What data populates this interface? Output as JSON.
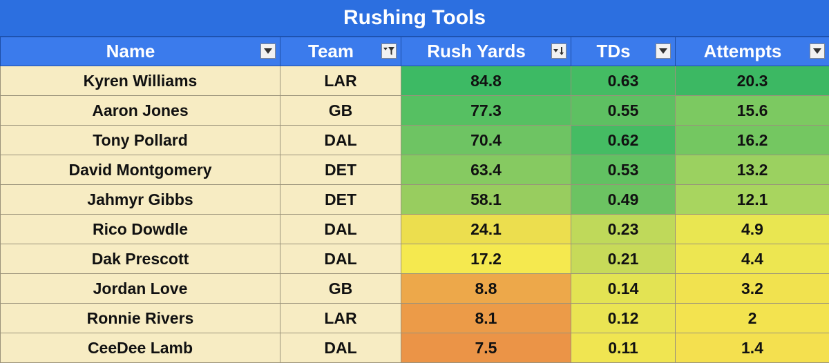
{
  "chart_data": {
    "type": "table",
    "title": "Rushing Tools",
    "columns": [
      {
        "label": "Name",
        "filter": "dropdown"
      },
      {
        "label": "Team",
        "filter": "filtered"
      },
      {
        "label": "Rush Yards",
        "filter": "sorted-desc"
      },
      {
        "label": "TDs",
        "filter": "dropdown"
      },
      {
        "label": "Attempts",
        "filter": "dropdown"
      }
    ],
    "rows": [
      {
        "name": "Kyren Williams",
        "team": "LAR",
        "rush_yards": "84.8",
        "tds": "0.63",
        "attempts": "20.3",
        "colors": [
          "#3dba64",
          "#44bc63",
          "#3cb863"
        ]
      },
      {
        "name": "Aaron Jones",
        "team": "GB",
        "rush_yards": "77.3",
        "tds": "0.55",
        "attempts": "15.6",
        "colors": [
          "#56c062",
          "#5ec062",
          "#7cc961"
        ]
      },
      {
        "name": "Tony Pollard",
        "team": "DAL",
        "rush_yards": "70.4",
        "tds": "0.62",
        "attempts": "16.2",
        "colors": [
          "#6ec463",
          "#45bc63",
          "#74c761"
        ]
      },
      {
        "name": "David Montgomery",
        "team": "DET",
        "rush_yards": "63.4",
        "tds": "0.53",
        "attempts": "13.2",
        "colors": [
          "#86ca61",
          "#62c162",
          "#9bd160"
        ]
      },
      {
        "name": "Jahmyr Gibbs",
        "team": "DET",
        "rush_yards": "58.1",
        "tds": "0.49",
        "attempts": "12.1",
        "colors": [
          "#98cd5f",
          "#6cc362",
          "#a8d55f"
        ]
      },
      {
        "name": "Rico Dowdle",
        "team": "DAL",
        "rush_yards": "24.1",
        "tds": "0.23",
        "attempts": "4.9",
        "colors": [
          "#ecde4e",
          "#bfd95a",
          "#e9e651"
        ]
      },
      {
        "name": "Dak Prescott",
        "team": "DAL",
        "rush_yards": "17.2",
        "tds": "0.21",
        "attempts": "4.4",
        "colors": [
          "#f5e94f",
          "#c7da59",
          "#ede651"
        ]
      },
      {
        "name": "Jordan Love",
        "team": "GB",
        "rush_yards": "8.8",
        "tds": "0.14",
        "attempts": "3.2",
        "colors": [
          "#eda84a",
          "#e3e353",
          "#f1e24f"
        ]
      },
      {
        "name": "Ronnie Rivers",
        "team": "LAR",
        "rush_yards": "8.1",
        "tds": "0.12",
        "attempts": "2",
        "colors": [
          "#ec9b48",
          "#eae453",
          "#f3e34f"
        ]
      },
      {
        "name": "CeeDee Lamb",
        "team": "DAL",
        "rush_yards": "7.5",
        "tds": "0.11",
        "attempts": "1.4",
        "colors": [
          "#eb9447",
          "#f0e551",
          "#f4e04f"
        ]
      }
    ]
  }
}
